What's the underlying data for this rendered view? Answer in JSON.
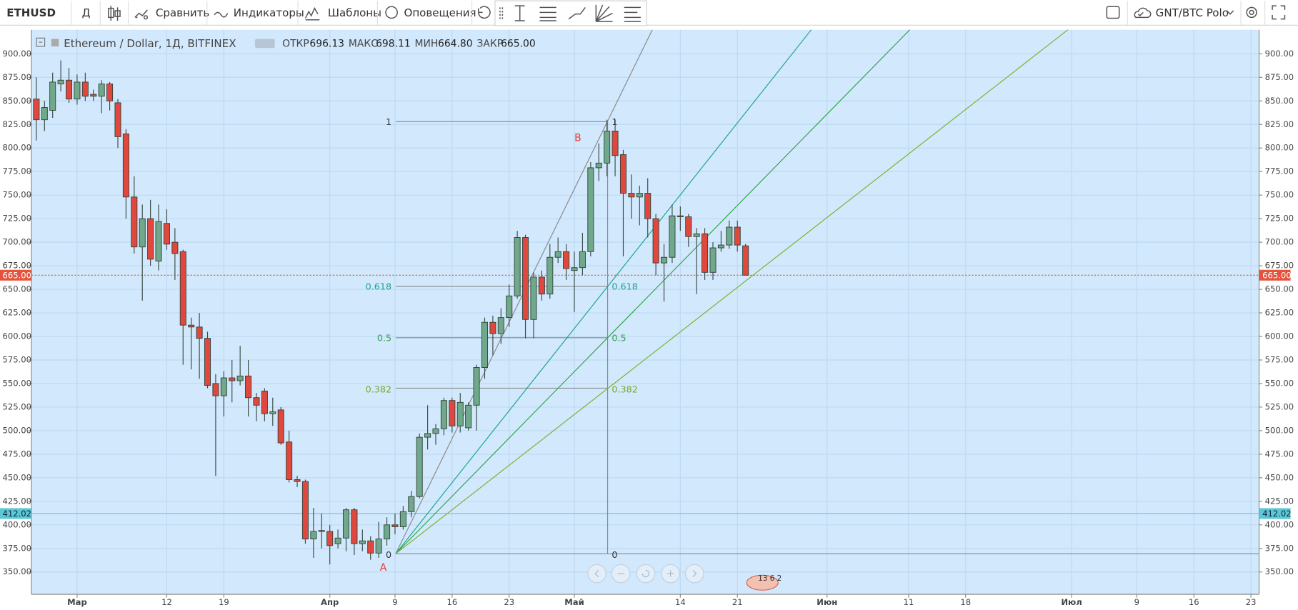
{
  "toolbar": {
    "symbol": "ETHUSD",
    "interval": "Д",
    "compare": "Сравнить",
    "indicators": "Индикаторы",
    "templates": "Шаблоны",
    "alerts": "Оповещения",
    "layout": "GNT/BTC Polo"
  },
  "legend": {
    "symbol": "Ethereum / Dollar, 1Д, BITFINEX",
    "fields": [
      {
        "label": "ОТКР",
        "value": "696.13"
      },
      {
        "label": "МАКС",
        "value": "698.11"
      },
      {
        "label": "МИН",
        "value": "664.80"
      },
      {
        "label": "ЗАКР",
        "value": "665.00"
      }
    ]
  },
  "events_badge": "13 6 2",
  "chart_data": {
    "type": "candlestick",
    "up_color": "#6fa88a",
    "down_color": "#e0483d",
    "grid": true,
    "x": [
      -5,
      -4,
      -3,
      -2,
      -1,
      0,
      1,
      2,
      3,
      4,
      5,
      6,
      7,
      8,
      9,
      10,
      11,
      12,
      13,
      14,
      15,
      16,
      17,
      18,
      19,
      20,
      21,
      22,
      23,
      24,
      25,
      26,
      27,
      28,
      29,
      30,
      31,
      32,
      33,
      34,
      35,
      36,
      37,
      38,
      39,
      40,
      41,
      42,
      43,
      44,
      45,
      46,
      47,
      48,
      49,
      50,
      51,
      52,
      53,
      54,
      55,
      56,
      57,
      58,
      59,
      60,
      61,
      62,
      63,
      64,
      65,
      66,
      67,
      68,
      69,
      70,
      71,
      72,
      73,
      74,
      75,
      76,
      77,
      78,
      79,
      80,
      81,
      82
    ],
    "open": [
      852,
      830,
      840,
      868,
      872,
      852,
      870,
      857,
      855,
      868,
      848,
      815,
      748,
      695,
      725,
      680,
      720,
      700,
      690,
      612,
      610,
      598,
      550,
      537,
      556,
      553,
      558,
      535,
      542,
      518,
      522,
      488,
      448,
      446,
      385,
      394,
      393,
      380,
      386,
      416,
      380,
      383,
      370,
      385,
      400,
      398,
      414,
      430,
      493,
      497,
      502,
      532,
      505,
      503,
      527,
      567,
      615,
      603,
      620,
      643,
      705,
      618,
      663,
      645,
      684,
      690,
      670,
      673,
      690,
      779,
      784,
      818,
      793,
      752,
      748,
      752,
      725,
      678,
      684,
      728,
      727,
      706,
      709,
      668,
      694,
      697,
      716,
      696.13
    ],
    "high": [
      875,
      850,
      880,
      893,
      885,
      878,
      880,
      862,
      872,
      870,
      852,
      820,
      770,
      740,
      745,
      740,
      735,
      715,
      692,
      620,
      625,
      605,
      560,
      563,
      575,
      590,
      575,
      540,
      545,
      535,
      525,
      500,
      452,
      448,
      418,
      412,
      400,
      395,
      418,
      418,
      395,
      388,
      403,
      408,
      412,
      420,
      436,
      497,
      527,
      507,
      535,
      535,
      540,
      530,
      570,
      620,
      622,
      630,
      655,
      712,
      708,
      668,
      670,
      698,
      705,
      698,
      690,
      710,
      785,
      805,
      830,
      830,
      798,
      772,
      760,
      768,
      730,
      698,
      740,
      738,
      730,
      715,
      715,
      700,
      712,
      723,
      723,
      698.11
    ],
    "low": [
      808,
      818,
      832,
      860,
      848,
      846,
      850,
      850,
      837,
      840,
      800,
      725,
      688,
      638,
      675,
      670,
      692,
      660,
      570,
      565,
      555,
      545,
      452,
      515,
      530,
      548,
      515,
      510,
      510,
      505,
      485,
      445,
      440,
      380,
      365,
      375,
      358,
      375,
      372,
      368,
      372,
      363,
      365,
      378,
      390,
      395,
      408,
      428,
      480,
      485,
      495,
      498,
      498,
      500,
      500,
      555,
      580,
      592,
      610,
      640,
      598,
      598,
      638,
      640,
      678,
      660,
      626,
      665,
      685,
      765,
      770,
      770,
      685,
      725,
      718,
      705,
      665,
      637,
      678,
      712,
      695,
      645,
      660,
      660,
      690,
      693,
      690,
      664.8
    ],
    "close": [
      830,
      843,
      870,
      872,
      852,
      870,
      855,
      855,
      868,
      850,
      812,
      748,
      695,
      725,
      682,
      722,
      698,
      688,
      612,
      610,
      598,
      548,
      537,
      556,
      553,
      558,
      535,
      527,
      518,
      520,
      487,
      448,
      446,
      385,
      393,
      393,
      378,
      386,
      416,
      380,
      383,
      370,
      385,
      400,
      398,
      414,
      430,
      493,
      497,
      502,
      532,
      505,
      530,
      527,
      567,
      615,
      603,
      620,
      643,
      705,
      618,
      663,
      645,
      684,
      690,
      672,
      673,
      690,
      779,
      784,
      818,
      792,
      752,
      748,
      752,
      725,
      678,
      684,
      728,
      727,
      706,
      709,
      668,
      694,
      697,
      716,
      697,
      665
    ],
    "xlim": [
      -5.6,
      145
    ],
    "xticks": [
      {
        "value": 0,
        "label": "Мар"
      },
      {
        "value": 11,
        "label": "12"
      },
      {
        "value": 18,
        "label": "19"
      },
      {
        "value": 31,
        "label": "Апр"
      },
      {
        "value": 39,
        "label": "9"
      },
      {
        "value": 46,
        "label": "16"
      },
      {
        "value": 53,
        "label": "23"
      },
      {
        "value": 61,
        "label": "Май"
      },
      {
        "value": 74,
        "label": "14"
      },
      {
        "value": 81,
        "label": "21"
      },
      {
        "value": 92,
        "label": "Июн"
      },
      {
        "value": 102,
        "label": "11"
      },
      {
        "value": 109,
        "label": "18"
      },
      {
        "value": 122,
        "label": "Июл"
      },
      {
        "value": 130,
        "label": "9"
      },
      {
        "value": 137,
        "label": "16"
      },
      {
        "value": 144,
        "label": "23"
      }
    ],
    "ylim": [
      326.3,
      925.5
    ],
    "yticks": [
      {
        "value": 350,
        "label": "350.00"
      },
      {
        "value": 375,
        "label": "375.00"
      },
      {
        "value": 400,
        "label": "400.00"
      },
      {
        "value": 425,
        "label": "425.00"
      },
      {
        "value": 450,
        "label": "450.00"
      },
      {
        "value": 475,
        "label": "475.00"
      },
      {
        "value": 500,
        "label": "500.00"
      },
      {
        "value": 525,
        "label": "525.00"
      },
      {
        "value": 550,
        "label": "550.00"
      },
      {
        "value": 575,
        "label": "575.00"
      },
      {
        "value": 600,
        "label": "600.00"
      },
      {
        "value": 625,
        "label": "625.00"
      },
      {
        "value": 650,
        "label": "650.00"
      },
      {
        "value": 675,
        "label": "675.00"
      },
      {
        "value": 700,
        "label": "700.00"
      },
      {
        "value": 725,
        "label": "725.00"
      },
      {
        "value": 750,
        "label": "750.00"
      },
      {
        "value": 775,
        "label": "775.00"
      },
      {
        "value": 800,
        "label": "800.00"
      },
      {
        "value": 825,
        "label": "825.00"
      },
      {
        "value": 850,
        "label": "850.00"
      },
      {
        "value": 875,
        "label": "875.00"
      },
      {
        "value": 900,
        "label": "900.00"
      }
    ],
    "price_lines": [
      {
        "value": 665,
        "label": "665.00",
        "color": "#e5533d"
      },
      {
        "value": 412.02,
        "label": "412.02",
        "color": "#5cc8d6"
      }
    ],
    "annotations": {
      "levels": [
        "1",
        "0.618",
        "0.5",
        "0.382",
        "0"
      ],
      "points": [
        "A",
        "B"
      ]
    }
  }
}
